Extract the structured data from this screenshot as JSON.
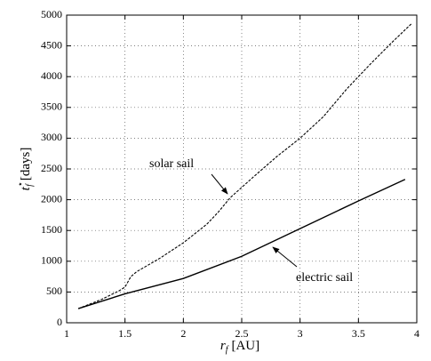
{
  "chart_data": {
    "type": "line",
    "x_label": {
      "symbol": "r",
      "subscript": "f",
      "unit": "[AU]"
    },
    "y_label": {
      "symbol": "t",
      "superscript": "⋆",
      "subscript": "f",
      "unit": "[days]"
    },
    "xlim": [
      1,
      4
    ],
    "ylim": [
      0,
      5000
    ],
    "xticks": [
      1,
      1.5,
      2,
      2.5,
      3,
      3.5,
      4
    ],
    "yticks": [
      0,
      500,
      1000,
      1500,
      2000,
      2500,
      3000,
      3500,
      4000,
      4500,
      5000
    ],
    "grid": true,
    "series": [
      {
        "name": "solar sail",
        "color": "#000000",
        "line_style": "dashed",
        "x": [
          1.1,
          1.3,
          1.45,
          1.5,
          1.55,
          1.6,
          1.8,
          2.0,
          2.2,
          2.3,
          2.4,
          2.6,
          2.8,
          3.0,
          3.2,
          3.4,
          3.6,
          3.8,
          3.96
        ],
        "values": [
          230,
          380,
          520,
          580,
          750,
          830,
          1050,
          1300,
          1600,
          1800,
          2030,
          2370,
          2700,
          3000,
          3350,
          3800,
          4200,
          4580,
          4870
        ]
      },
      {
        "name": "electric sail",
        "color": "#000000",
        "line_style": "solid",
        "x": [
          1.1,
          1.5,
          2.0,
          2.5,
          3.0,
          3.5,
          3.9
        ],
        "values": [
          230,
          470,
          720,
          1080,
          1530,
          1980,
          2330
        ]
      }
    ]
  }
}
